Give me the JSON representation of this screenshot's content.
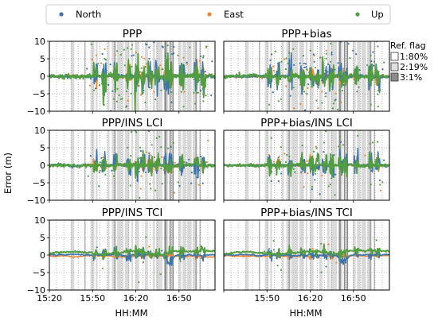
{
  "chart_data": {
    "type": "scatter",
    "ylabel": "Error (m)",
    "xlabel": "HH:MM",
    "ylim": [
      -10,
      10
    ],
    "yticks": [
      "10",
      "5",
      "0",
      "−5",
      "−10"
    ],
    "xticks": [
      "15:20",
      "15:50",
      "16:20",
      "16:50"
    ],
    "legend": {
      "placement": "top",
      "entries": [
        {
          "name": "North",
          "color": "#3b75af"
        },
        {
          "name": "East",
          "color": "#ef8636"
        },
        {
          "name": "Up",
          "color": "#519e3e"
        }
      ]
    },
    "ref_flag": {
      "title": "Ref. flag",
      "entries": [
        {
          "label": "1:80%",
          "color": "#ffffff"
        },
        {
          "label": "2:19%",
          "color": "#e0e0e0"
        },
        {
          "label": "3:1%",
          "color": "#8c8c8c"
        }
      ]
    },
    "panels": [
      {
        "title": "PPP",
        "noise": 1.0,
        "spikes": 1.0
      },
      {
        "title": "PPP+bias",
        "noise": 0.85,
        "spikes": 0.9
      },
      {
        "title": "PPP/INS LCI",
        "noise": 0.7,
        "spikes": 0.5
      },
      {
        "title": "PPP+bias/INS LCI",
        "noise": 0.65,
        "spikes": 0.45
      },
      {
        "title": "PPP/INS TCI",
        "noise": 0.3,
        "spikes": 0.1
      },
      {
        "title": "PPP+bias/INS TCI",
        "noise": 0.28,
        "spikes": 0.1
      }
    ],
    "time_range_minutes": [
      920,
      1035
    ],
    "grid": true
  }
}
